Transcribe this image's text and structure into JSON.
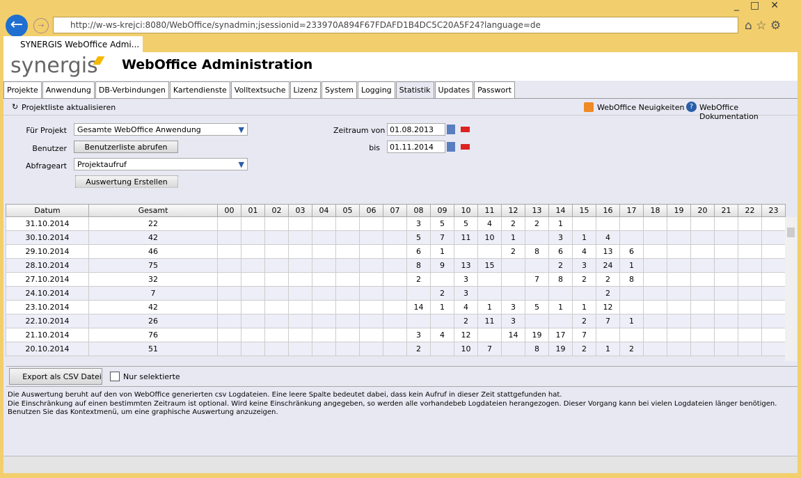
{
  "browser": {
    "url": "http://w-ws-krejci:8080/WebOffice/synadmin;jsessionid=233970A894F67FDAFD1B4DC5C20A5F24?language=de",
    "tab_title": "SYNERGIS WebOffice Admi..."
  },
  "header": {
    "logo": "synergis",
    "title": "WebOffice Administration"
  },
  "tabs": [
    "Projekte",
    "Anwendung",
    "DB-Verbindungen",
    "Kartendienste",
    "Volltextsuche",
    "Lizenz",
    "System",
    "Logging",
    "Statistik",
    "Updates",
    "Passwort"
  ],
  "toolbar": {
    "refresh": "Projektliste aktualisieren",
    "news": "WebOffice Neuigkeiten",
    "docs": "WebOffice Dokumentation"
  },
  "form": {
    "project_label": "Für Projekt",
    "project_value": "Gesamte WebOffice Anwendung",
    "user_label": "Benutzer",
    "user_button": "Benutzerliste abrufen",
    "query_label": "Abfrageart",
    "query_value": "Projektaufruf",
    "create_button": "Auswertung Erstellen",
    "from_label": "Zeitraum von",
    "from_value": "01.08.2013",
    "to_label": "bis",
    "to_value": "01.11.2014"
  },
  "table": {
    "headers": [
      "Datum",
      "Gesamt",
      "00",
      "01",
      "02",
      "03",
      "04",
      "05",
      "06",
      "07",
      "08",
      "09",
      "10",
      "11",
      "12",
      "13",
      "14",
      "15",
      "16",
      "17",
      "18",
      "19",
      "20",
      "21",
      "22",
      "23"
    ],
    "rows": [
      {
        "datum": "31.10.2014",
        "gesamt": 22,
        "hours": [
          null,
          null,
          null,
          null,
          null,
          null,
          null,
          null,
          3,
          5,
          5,
          4,
          2,
          2,
          1,
          null,
          null,
          null,
          null,
          null,
          null,
          null,
          null,
          null
        ]
      },
      {
        "datum": "30.10.2014",
        "gesamt": 42,
        "hours": [
          null,
          null,
          null,
          null,
          null,
          null,
          null,
          null,
          5,
          7,
          11,
          10,
          1,
          null,
          3,
          1,
          4,
          null,
          null,
          null,
          null,
          null,
          null,
          null
        ]
      },
      {
        "datum": "29.10.2014",
        "gesamt": 46,
        "hours": [
          null,
          null,
          null,
          null,
          null,
          null,
          null,
          null,
          6,
          1,
          null,
          null,
          2,
          8,
          6,
          4,
          13,
          6,
          null,
          null,
          null,
          null,
          null,
          null
        ]
      },
      {
        "datum": "28.10.2014",
        "gesamt": 75,
        "hours": [
          null,
          null,
          null,
          null,
          null,
          null,
          null,
          null,
          8,
          9,
          13,
          15,
          null,
          null,
          2,
          3,
          24,
          1,
          null,
          null,
          null,
          null,
          null,
          null
        ]
      },
      {
        "datum": "27.10.2014",
        "gesamt": 32,
        "hours": [
          null,
          null,
          null,
          null,
          null,
          null,
          null,
          null,
          2,
          null,
          3,
          null,
          null,
          7,
          8,
          2,
          2,
          8,
          null,
          null,
          null,
          null,
          null,
          null
        ]
      },
      {
        "datum": "24.10.2014",
        "gesamt": 7,
        "hours": [
          null,
          null,
          null,
          null,
          null,
          null,
          null,
          null,
          null,
          2,
          3,
          null,
          null,
          null,
          null,
          null,
          2,
          null,
          null,
          null,
          null,
          null,
          null,
          null
        ]
      },
      {
        "datum": "23.10.2014",
        "gesamt": 42,
        "hours": [
          null,
          null,
          null,
          null,
          null,
          null,
          null,
          null,
          14,
          1,
          4,
          1,
          3,
          5,
          1,
          1,
          12,
          null,
          null,
          null,
          null,
          null,
          null,
          null
        ]
      },
      {
        "datum": "22.10.2014",
        "gesamt": 26,
        "hours": [
          null,
          null,
          null,
          null,
          null,
          null,
          null,
          null,
          null,
          null,
          2,
          11,
          3,
          null,
          null,
          2,
          7,
          1,
          null,
          null,
          null,
          null,
          null,
          null
        ]
      },
      {
        "datum": "21.10.2014",
        "gesamt": 76,
        "hours": [
          null,
          null,
          null,
          null,
          null,
          null,
          null,
          null,
          3,
          4,
          12,
          null,
          14,
          19,
          17,
          7,
          null,
          null,
          null,
          null,
          null,
          null,
          null,
          null
        ]
      },
      {
        "datum": "20.10.2014",
        "gesamt": 51,
        "hours": [
          null,
          null,
          null,
          null,
          null,
          null,
          null,
          null,
          2,
          null,
          10,
          7,
          null,
          8,
          19,
          2,
          1,
          2,
          null,
          null,
          null,
          null,
          null,
          null
        ]
      }
    ]
  },
  "footer": {
    "export_button": "Export als CSV Datei",
    "only_selected": "Nur selektierte",
    "info": [
      "Die Auswertung beruht auf den von WebOffice generierten csv Logdateien. Eine leere Spalte bedeutet dabei, dass kein Aufruf in dieser Zeit stattgefunden hat.",
      "Die Einschränkung auf einen bestimmten Zeitraum ist optional. Wird keine Einschränkung angegeben, so werden alle vorhandebeb Logdateien herangezogen. Dieser Vorgang kann bei vielen Logdateien länger benötigen.",
      "Benutzen Sie das Kontextmenü, um eine graphische Auswertung anzuzeigen."
    ]
  }
}
